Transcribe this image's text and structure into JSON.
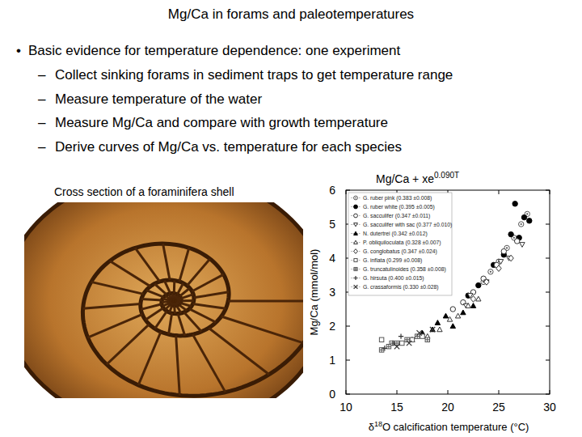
{
  "title": "Mg/Ca in forams and paleotemperatures",
  "bullets": [
    {
      "bullet": "•",
      "text": "Basic evidence for temperature dependence: one experiment",
      "items": [
        {
          "bullet": "–",
          "text": "Collect sinking forams in sediment traps to get temperature range"
        },
        {
          "bullet": "–",
          "text": "Measure temperature of the water"
        },
        {
          "bullet": "–",
          "text": "Measure Mg/Ca and compare with growth temperature"
        },
        {
          "bullet": "–",
          "text": "Derive curves of Mg/Ca vs. temperature for each species"
        }
      ]
    }
  ],
  "image_caption": "Cross section of a foraminifera shell",
  "chart_data": {
    "type": "scatter",
    "title": "Mg/Ca + xe0.090T",
    "xlabel": "δ18O calcification temperature (°C)",
    "ylabel": "Mg/Ca (mmol/mol)",
    "xlim": [
      10,
      30
    ],
    "xticks": [
      10,
      15,
      20,
      25,
      30
    ],
    "ylim": [
      0,
      6
    ],
    "yticks": [
      0,
      1,
      2,
      3,
      4,
      5,
      6
    ],
    "grid": false,
    "legend": "upper left",
    "series": [
      {
        "name": "G. ruber pink (0.383 ±0.008)",
        "color": "#555555",
        "marker": "circle-dot",
        "x": [
          23.5,
          24.2,
          25.0,
          25.8,
          26.5,
          27.2,
          27.8
        ],
        "values": [
          3.3,
          3.6,
          3.9,
          4.3,
          4.6,
          5.0,
          5.3
        ]
      },
      {
        "name": "G. ruber white (0.395 ±0.005)",
        "color": "#000000",
        "marker": "circle",
        "x": [
          22.0,
          23.0,
          24.5,
          25.5,
          26.2,
          27.0,
          27.5,
          28.0,
          26.6
        ],
        "values": [
          2.9,
          3.2,
          3.8,
          4.1,
          4.7,
          4.6,
          5.2,
          5.1,
          5.6
        ]
      },
      {
        "name": "G. sacculifer (0.347 ±0.011)",
        "color": "#333333",
        "marker": "circle-open",
        "x": [
          20.5,
          21.5,
          22.5,
          23.5,
          24.8,
          25.5,
          26.8
        ],
        "values": [
          2.5,
          2.7,
          3.0,
          3.4,
          3.8,
          4.2,
          4.5
        ]
      },
      {
        "name": "G. sacculifer with sac (0.377 ±0.010)",
        "color": "#333333",
        "marker": "triangle-down-open",
        "x": [
          21.8,
          22.2,
          23.8,
          25.2,
          26.0,
          27.3
        ],
        "values": [
          2.6,
          2.9,
          3.3,
          3.9,
          4.0,
          4.4
        ]
      },
      {
        "name": "N. dutertrei (0.342 ±0.012)",
        "color": "#000000",
        "marker": "triangle",
        "x": [
          16.5,
          17.5,
          18.5,
          19.0,
          19.8,
          20.5,
          21.5,
          22.5
        ],
        "values": [
          1.6,
          1.8,
          1.9,
          2.1,
          2.3,
          2.0,
          2.4,
          2.6
        ]
      },
      {
        "name": "P. obliquiloculata (0.328 ±0.007)",
        "color": "#333333",
        "marker": "triangle-open",
        "x": [
          18.0,
          19.2,
          20.2,
          21.0,
          22.0,
          23.0
        ],
        "values": [
          1.7,
          1.9,
          2.2,
          2.3,
          2.6,
          2.8
        ]
      },
      {
        "name": "G. conglobatus (0.347 ±0.024)",
        "color": "#333333",
        "marker": "diamond-open",
        "x": [
          22.5,
          23.8,
          25.0,
          26.2
        ],
        "values": [
          2.8,
          3.3,
          3.7,
          4.0
        ]
      },
      {
        "name": "G. inflata (0.299 ±0.008)",
        "color": "#555555",
        "marker": "square-open",
        "x": [
          13.5,
          14.5,
          15.5,
          16.5,
          17.5
        ],
        "values": [
          1.6,
          1.5,
          1.5,
          1.6,
          1.7
        ]
      },
      {
        "name": "G. truncatulinoides (0.358 ±0.008)",
        "color": "#555555",
        "marker": "square-cross",
        "x": [
          13.5,
          14.2,
          15.0,
          16.0,
          17.0,
          18.0
        ],
        "values": [
          1.3,
          1.4,
          1.5,
          1.6,
          1.7,
          1.6
        ]
      },
      {
        "name": "G. hirsuta (0.400 ±0.015)",
        "color": "#333333",
        "marker": "plus",
        "x": [
          13.8,
          14.6,
          15.4
        ],
        "values": [
          1.35,
          1.5,
          1.7
        ]
      },
      {
        "name": "G. crassaformis (0.330 ±0.028)",
        "color": "#333333",
        "marker": "cross",
        "x": [
          15.0,
          16.2,
          17.2,
          18.5
        ],
        "values": [
          1.4,
          1.5,
          1.8,
          1.9
        ]
      }
    ]
  }
}
